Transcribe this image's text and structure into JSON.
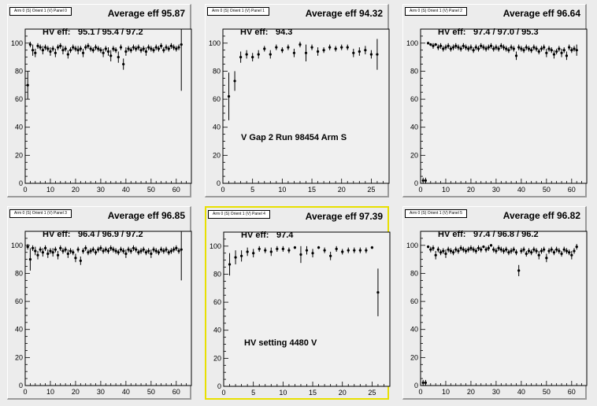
{
  "pads": [
    {
      "tag": "Arm 0 (S) Orient 1 (V) Panel 0",
      "avg_label": "Average eff 95.87",
      "hv_label": "HV eff:",
      "hv_value": "95.1 / 95.4 / 97.2",
      "note": "",
      "selected": false,
      "chart_data": {
        "type": "scatter",
        "xlim": [
          0,
          66
        ],
        "ylim": [
          0,
          110
        ],
        "xticks": [
          0,
          10,
          20,
          30,
          40,
          50,
          60
        ],
        "yticks": [
          0,
          20,
          40,
          60,
          80,
          100
        ],
        "x": [
          1,
          2,
          3,
          4,
          5,
          6,
          7,
          8,
          9,
          10,
          11,
          12,
          13,
          14,
          15,
          16,
          17,
          18,
          19,
          20,
          21,
          22,
          23,
          24,
          25,
          26,
          27,
          28,
          29,
          30,
          31,
          32,
          33,
          34,
          35,
          36,
          37,
          38,
          39,
          40,
          41,
          42,
          43,
          44,
          45,
          46,
          47,
          48,
          49,
          50,
          51,
          52,
          53,
          54,
          55,
          56,
          57,
          58,
          59,
          60,
          61,
          62
        ],
        "y": [
          70,
          99,
          95,
          93,
          98,
          97,
          95,
          97,
          96,
          94,
          96,
          93,
          97,
          98,
          95,
          96,
          92,
          95,
          97,
          96,
          95,
          96,
          93,
          97,
          98,
          96,
          95,
          97,
          96,
          95,
          93,
          96,
          94,
          91,
          96,
          95,
          90,
          97,
          85,
          94,
          96,
          95,
          97,
          96,
          97,
          95,
          96,
          94,
          97,
          96,
          95,
          97,
          96,
          98,
          95,
          97,
          96,
          98,
          97,
          96,
          97,
          99
        ],
        "yerr": [
          10,
          2,
          4,
          3,
          2,
          2,
          3,
          2,
          2,
          3,
          2,
          3,
          2,
          2,
          3,
          2,
          3,
          2,
          2,
          2,
          3,
          2,
          3,
          2,
          2,
          2,
          2,
          2,
          2,
          2,
          3,
          2,
          3,
          4,
          2,
          2,
          4,
          2,
          4,
          3,
          2,
          2,
          2,
          2,
          2,
          2,
          2,
          3,
          2,
          2,
          2,
          2,
          2,
          2,
          2,
          2,
          2,
          2,
          2,
          2,
          2,
          33
        ]
      }
    },
    {
      "tag": "Arm 0 (S) Orient 1 (V) Panel 1",
      "avg_label": "Average eff 94.32",
      "hv_label": "HV eff:",
      "hv_value": "94.3",
      "note": "V Gap 2 Run 98454 Arm S",
      "selected": false,
      "chart_data": {
        "type": "scatter",
        "xlim": [
          0,
          28
        ],
        "ylim": [
          0,
          110
        ],
        "xticks": [
          0,
          5,
          10,
          15,
          20,
          25
        ],
        "yticks": [
          0,
          20,
          40,
          60,
          80,
          100
        ],
        "x": [
          1,
          2,
          3,
          4,
          5,
          6,
          7,
          8,
          9,
          10,
          11,
          12,
          13,
          14,
          15,
          16,
          17,
          18,
          19,
          20,
          21,
          22,
          23,
          24,
          25,
          26
        ],
        "y": [
          62,
          73,
          90,
          92,
          90,
          92,
          96,
          92,
          97,
          95,
          97,
          93,
          99,
          93,
          97,
          94,
          95,
          97,
          96,
          97,
          97,
          93,
          94,
          95,
          92,
          92
        ],
        "yerr": [
          17,
          7,
          4,
          3,
          3,
          3,
          2,
          3,
          2,
          2,
          2,
          3,
          2,
          6,
          2,
          3,
          2,
          2,
          2,
          2,
          2,
          3,
          3,
          3,
          3,
          11
        ]
      }
    },
    {
      "tag": "Arm 0 (S) Orient 1 (V) Panel 2",
      "avg_label": "Average eff 96.64",
      "hv_label": "HV eff:",
      "hv_value": "97.4 / 97.0 / 95.3",
      "note": "",
      "selected": false,
      "chart_data": {
        "type": "scatter",
        "xlim": [
          0,
          66
        ],
        "ylim": [
          0,
          110
        ],
        "xticks": [
          0,
          10,
          20,
          30,
          40,
          50,
          60
        ],
        "yticks": [
          0,
          20,
          40,
          60,
          80,
          100
        ],
        "x": [
          1,
          2,
          3,
          4,
          5,
          6,
          7,
          8,
          9,
          10,
          11,
          12,
          13,
          14,
          15,
          16,
          17,
          18,
          19,
          20,
          21,
          22,
          23,
          24,
          25,
          26,
          27,
          28,
          29,
          30,
          31,
          32,
          33,
          34,
          35,
          36,
          37,
          38,
          39,
          40,
          41,
          42,
          43,
          44,
          45,
          46,
          47,
          48,
          49,
          50,
          51,
          52,
          53,
          54,
          55,
          56,
          57,
          58,
          59,
          60,
          61,
          62
        ],
        "y": [
          2,
          2,
          100,
          99,
          98,
          99,
          97,
          98,
          96,
          97,
          98,
          96,
          97,
          98,
          97,
          96,
          98,
          97,
          96,
          97,
          95,
          97,
          96,
          98,
          97,
          96,
          97,
          98,
          96,
          97,
          96,
          98,
          97,
          96,
          95,
          97,
          96,
          91,
          97,
          96,
          95,
          97,
          96,
          95,
          97,
          96,
          94,
          96,
          97,
          93,
          96,
          95,
          92,
          94,
          96,
          93,
          95,
          91,
          97,
          95,
          96,
          95
        ],
        "yerr": [
          2,
          2,
          1,
          1,
          2,
          1,
          2,
          2,
          2,
          2,
          2,
          2,
          2,
          2,
          2,
          2,
          2,
          2,
          2,
          2,
          2,
          2,
          2,
          2,
          2,
          2,
          2,
          2,
          2,
          2,
          2,
          2,
          2,
          2,
          2,
          2,
          2,
          3,
          2,
          2,
          2,
          2,
          2,
          2,
          2,
          2,
          2,
          2,
          2,
          3,
          2,
          2,
          3,
          2,
          2,
          3,
          2,
          3,
          2,
          2,
          2,
          4
        ]
      }
    },
    {
      "tag": "Arm 0 (S) Orient 1 (V) Panel 3",
      "avg_label": "Average eff 96.85",
      "hv_label": "HV eff:",
      "hv_value": "96.4 / 96.9 / 97.2",
      "note": "",
      "selected": false,
      "chart_data": {
        "type": "scatter",
        "xlim": [
          0,
          66
        ],
        "ylim": [
          0,
          110
        ],
        "xticks": [
          0,
          10,
          20,
          30,
          40,
          50,
          60
        ],
        "yticks": [
          0,
          20,
          40,
          60,
          80,
          100
        ],
        "x": [
          1,
          2,
          3,
          4,
          5,
          6,
          7,
          8,
          9,
          10,
          11,
          12,
          13,
          14,
          15,
          16,
          17,
          18,
          19,
          20,
          21,
          22,
          23,
          24,
          25,
          26,
          27,
          28,
          29,
          30,
          31,
          32,
          33,
          34,
          35,
          36,
          37,
          38,
          39,
          40,
          41,
          42,
          43,
          44,
          45,
          46,
          47,
          48,
          49,
          50,
          51,
          52,
          53,
          54,
          55,
          56,
          57,
          58,
          59,
          60,
          61,
          62
        ],
        "y": [
          99,
          90,
          98,
          96,
          93,
          97,
          95,
          98,
          94,
          96,
          95,
          97,
          93,
          98,
          96,
          97,
          94,
          96,
          95,
          91,
          97,
          89,
          96,
          98,
          95,
          96,
          97,
          95,
          97,
          98,
          96,
          97,
          96,
          98,
          97,
          96,
          95,
          97,
          96,
          94,
          97,
          96,
          98,
          97,
          95,
          96,
          97,
          95,
          96,
          94,
          97,
          96,
          95,
          97,
          96,
          97,
          95,
          96,
          97,
          98,
          96,
          97
        ],
        "yerr": [
          2,
          8,
          2,
          3,
          3,
          2,
          3,
          2,
          3,
          2,
          3,
          2,
          3,
          2,
          2,
          2,
          3,
          2,
          2,
          3,
          2,
          3,
          2,
          2,
          2,
          2,
          2,
          2,
          2,
          2,
          2,
          2,
          2,
          2,
          2,
          2,
          2,
          2,
          2,
          3,
          2,
          2,
          2,
          2,
          2,
          2,
          2,
          2,
          2,
          3,
          2,
          2,
          2,
          2,
          2,
          2,
          2,
          2,
          2,
          2,
          2,
          22
        ]
      }
    },
    {
      "tag": "Arm 0 (S) Orient 1 (V) Panel 4",
      "avg_label": "Average eff 97.39",
      "hv_label": "HV eff:",
      "hv_value": "97.4",
      "note": "HV setting 4480 V",
      "selected": true,
      "chart_data": {
        "type": "scatter",
        "xlim": [
          0,
          28
        ],
        "ylim": [
          0,
          110
        ],
        "xticks": [
          0,
          5,
          10,
          15,
          20,
          25
        ],
        "yticks": [
          0,
          20,
          40,
          60,
          80,
          100
        ],
        "x": [
          1,
          2,
          3,
          4,
          5,
          6,
          7,
          8,
          9,
          10,
          11,
          12,
          13,
          14,
          15,
          16,
          17,
          18,
          19,
          20,
          21,
          22,
          23,
          24,
          25,
          26
        ],
        "y": [
          87,
          92,
          93,
          96,
          95,
          98,
          97,
          96,
          98,
          98,
          97,
          99,
          94,
          97,
          95,
          99,
          97,
          93,
          98,
          96,
          97,
          97,
          97,
          97,
          99,
          67
        ],
        "yerr": [
          8,
          5,
          4,
          3,
          3,
          2,
          2,
          3,
          2,
          2,
          2,
          1,
          6,
          3,
          3,
          1,
          2,
          3,
          2,
          2,
          2,
          2,
          2,
          2,
          1,
          17
        ]
      }
    },
    {
      "tag": "Arm 0 (S) Orient 1 (V) Panel 5",
      "avg_label": "Average eff 96.82",
      "hv_label": "HV eff:",
      "hv_value": "97.4 / 96.8 / 96.2",
      "note": "",
      "selected": false,
      "chart_data": {
        "type": "scatter",
        "xlim": [
          0,
          66
        ],
        "ylim": [
          0,
          110
        ],
        "xticks": [
          0,
          10,
          20,
          30,
          40,
          50,
          60
        ],
        "yticks": [
          0,
          20,
          40,
          60,
          80,
          100
        ],
        "x": [
          1,
          2,
          3,
          4,
          5,
          6,
          7,
          8,
          9,
          10,
          11,
          12,
          13,
          14,
          15,
          16,
          17,
          18,
          19,
          20,
          21,
          22,
          23,
          24,
          25,
          26,
          27,
          28,
          29,
          30,
          31,
          32,
          33,
          34,
          35,
          36,
          37,
          38,
          39,
          40,
          41,
          42,
          43,
          44,
          45,
          46,
          47,
          48,
          49,
          50,
          51,
          52,
          53,
          54,
          55,
          56,
          57,
          58,
          59,
          60,
          61,
          62
        ],
        "y": [
          2,
          2,
          99,
          97,
          98,
          93,
          97,
          95,
          96,
          94,
          97,
          96,
          95,
          97,
          96,
          98,
          97,
          96,
          97,
          98,
          97,
          96,
          98,
          97,
          99,
          97,
          98,
          100,
          97,
          96,
          98,
          97,
          96,
          97,
          95,
          96,
          97,
          95,
          82,
          96,
          97,
          94,
          96,
          95,
          97,
          96,
          93,
          96,
          97,
          91,
          96,
          97,
          95,
          97,
          96,
          94,
          97,
          96,
          95,
          93,
          96,
          99
        ],
        "yerr": [
          2,
          2,
          1,
          2,
          2,
          3,
          2,
          2,
          2,
          3,
          2,
          2,
          2,
          2,
          2,
          2,
          2,
          2,
          2,
          2,
          2,
          2,
          2,
          2,
          1,
          2,
          2,
          1,
          2,
          2,
          2,
          2,
          2,
          2,
          2,
          2,
          2,
          2,
          4,
          2,
          2,
          2,
          2,
          2,
          2,
          2,
          3,
          2,
          2,
          3,
          2,
          2,
          2,
          2,
          2,
          2,
          2,
          2,
          2,
          3,
          2,
          2
        ]
      }
    }
  ]
}
